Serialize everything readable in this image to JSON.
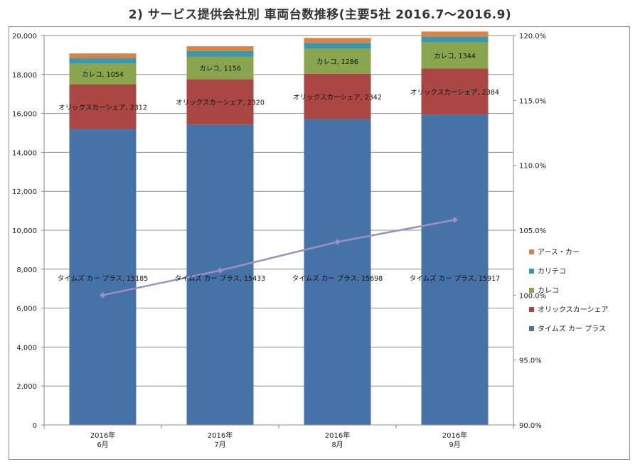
{
  "chart_data": {
    "type": "bar",
    "stacked": true,
    "title": "2) サービス提供会社別 車両台数推移(主要5社 2016.7～2016.9)",
    "categories": [
      {
        "line1": "2016年",
        "line2": "6月"
      },
      {
        "line1": "2016年",
        "line2": "7月"
      },
      {
        "line1": "2016年",
        "line2": "8月"
      },
      {
        "line1": "2016年",
        "line2": "9月"
      }
    ],
    "ylim": [
      0,
      20000
    ],
    "y_ticks": [
      "0",
      "2,000",
      "4,000",
      "6,000",
      "8,000",
      "10,000",
      "12,000",
      "14,000",
      "16,000",
      "18,000",
      "20,000"
    ],
    "y2lim": [
      90.0,
      120.0
    ],
    "y2_ticks": [
      "90.0%",
      "95.0%",
      "100.0%",
      "105.0%",
      "110.0%",
      "115.0%",
      "120.0%"
    ],
    "grid": true,
    "legend_position": "right",
    "series": [
      {
        "name": "タイムズ カー プラス",
        "color": "#4572A7",
        "values": [
          15185,
          15433,
          15698,
          15917
        ],
        "labels": [
          "タイムズ カー プラス, 15185",
          "タイムズ カー プラス, 15433",
          "タイムズ カー プラス, 15698",
          "タイムズ カー プラス, 15917"
        ]
      },
      {
        "name": "オリックスカーシェア",
        "color": "#AA4643",
        "values": [
          2312,
          2320,
          2342,
          2384
        ],
        "labels": [
          "オリックスカーシェア, 2312",
          "オリックスカーシェア, 2320",
          "オリックスカーシェア, 2342",
          "オリックスカーシェア, 2384"
        ]
      },
      {
        "name": "カレコ",
        "color": "#89A54E",
        "values": [
          1054,
          1156,
          1286,
          1344
        ],
        "labels": [
          "カレコ, 1054",
          "カレコ, 1156",
          "カレコ, 1286",
          "カレコ, 1344"
        ]
      },
      {
        "name": "カリテコ",
        "color": "#3D96AE",
        "values": [
          280,
          290,
          300,
          310
        ]
      },
      {
        "name": "アース・カー",
        "color": "#DB843D",
        "values": [
          250,
          250,
          250,
          250
        ]
      }
    ],
    "line_series": {
      "axis": "secondary",
      "color": "#9E8FC3",
      "values": [
        100.0,
        101.9,
        104.1,
        105.8
      ]
    }
  }
}
